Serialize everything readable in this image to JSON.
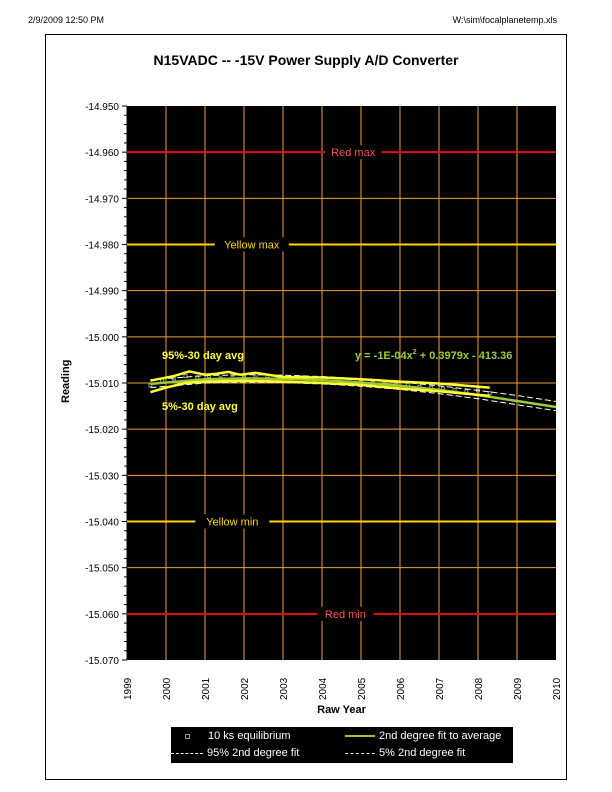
{
  "header": {
    "datetime": "2/9/2009 12:50 PM",
    "file_path": "W:\\sim\\focalplanetemp.xls"
  },
  "chart_data": {
    "type": "scatter",
    "title": "N15VADC -- -15V Power Supply A/D Converter",
    "xlabel": "Raw Year",
    "ylabel": "Reading",
    "xlim": [
      1999,
      2010
    ],
    "ylim": [
      -15.07,
      -14.95
    ],
    "x_ticks": [
      "1999",
      "2000",
      "2001",
      "2002",
      "2003",
      "2004",
      "2005",
      "2006",
      "2007",
      "2008",
      "2009",
      "2010"
    ],
    "y_ticks": [
      "-14.950",
      "-14.960",
      "-14.970",
      "-14.980",
      "-14.990",
      "-15.000",
      "-15.010",
      "-15.020",
      "-15.030",
      "-15.040",
      "-15.050",
      "-15.060",
      "-15.070"
    ],
    "grid": true,
    "reference_lines": [
      {
        "label": "Red max",
        "value": -14.96,
        "color": "#e01010",
        "label_x": 2004.8
      },
      {
        "label": "Yellow max",
        "value": -14.98,
        "color": "#ffd400",
        "label_x": 2002.2
      },
      {
        "label": "Yellow min",
        "value": -15.04,
        "color": "#ffd400",
        "label_x": 2001.7
      },
      {
        "label": "Red min",
        "value": -15.06,
        "color": "#e01010",
        "label_x": 2004.6
      }
    ],
    "annotations": [
      {
        "text": "95%-30 day avg",
        "color": "#ffff33"
      },
      {
        "text": "5%-30 day avg",
        "color": "#ffff33"
      },
      {
        "text": "y = -1E-04x",
        "sup": "2",
        "rest": " + 0.3979x - 413.36",
        "color": "#99cc33"
      }
    ],
    "series": [
      {
        "name": "10 ks equilibrium",
        "kind": "points",
        "color": "#999999",
        "x": [
          1999.6,
          1999.9,
          2000.2,
          2000.5,
          2000.8,
          2001.1,
          2001.4,
          2001.7,
          2002.0,
          2002.3,
          2002.6,
          2002.9,
          2003.2,
          2003.5,
          2003.8,
          2004.1,
          2004.4,
          2004.7,
          2005.0,
          2005.3,
          2005.6,
          2005.9,
          2006.2,
          2006.5,
          2006.8,
          2007.1,
          2007.4,
          2007.7,
          2008.0,
          2008.3
        ],
        "y": [
          -15.0105,
          -15.0095,
          -15.009,
          -15.0085,
          -15.0088,
          -15.0085,
          -15.009,
          -15.0082,
          -15.0088,
          -15.0088,
          -15.0085,
          -15.0092,
          -15.009,
          -15.0088,
          -15.0092,
          -15.009,
          -15.0093,
          -15.0095,
          -15.0098,
          -15.01,
          -15.0102,
          -15.0105,
          -15.0104,
          -15.0108,
          -15.011,
          -15.0112,
          -15.0115,
          -15.0118,
          -15.0116,
          -15.0122
        ]
      },
      {
        "name": "2nd degree fit to average",
        "kind": "line",
        "color": "#99cc33",
        "x": [
          1999.6,
          2001,
          2002,
          2003,
          2004,
          2005,
          2006,
          2007,
          2008,
          2009,
          2010
        ],
        "y": [
          -15.0102,
          -15.0092,
          -15.009,
          -15.0091,
          -15.0094,
          -15.0099,
          -15.0106,
          -15.0115,
          -15.0126,
          -15.0139,
          -15.0152
        ]
      },
      {
        "name": "95% 2nd degree fit",
        "kind": "dash",
        "color": "#ffffff",
        "x": [
          1999.6,
          2001,
          2002,
          2003,
          2004,
          2005,
          2006,
          2007,
          2008,
          2009,
          2010
        ],
        "y": [
          -15.0093,
          -15.0084,
          -15.0082,
          -15.0083,
          -15.0086,
          -15.0091,
          -15.0098,
          -15.0106,
          -15.0116,
          -15.0127,
          -15.014
        ]
      },
      {
        "name": "5% 2nd degree fit",
        "kind": "dash",
        "color": "#ffffff",
        "x": [
          1999.6,
          2001,
          2002,
          2003,
          2004,
          2005,
          2006,
          2007,
          2008,
          2009,
          2010
        ],
        "y": [
          -15.011,
          -15.01,
          -15.0098,
          -15.0099,
          -15.0102,
          -15.0107,
          -15.0114,
          -15.0123,
          -15.0134,
          -15.0147,
          -15.016
        ]
      },
      {
        "name": "95%-30 day avg",
        "kind": "line",
        "color": "#ffff33",
        "x": [
          1999.6,
          2000.2,
          2000.6,
          2001.0,
          2001.3,
          2001.6,
          2001.9,
          2002.3,
          2003,
          2004,
          2005,
          2006,
          2007,
          2008.3
        ],
        "y": [
          -15.0095,
          -15.0085,
          -15.0075,
          -15.0082,
          -15.008,
          -15.0076,
          -15.0082,
          -15.0078,
          -15.0087,
          -15.0088,
          -15.0092,
          -15.0097,
          -15.0101,
          -15.011
        ]
      },
      {
        "name": "5%-30 day avg",
        "kind": "line",
        "color": "#ffff33",
        "x": [
          1999.6,
          2000.0,
          2000.5,
          2001,
          2002,
          2003,
          2004,
          2005,
          2006,
          2007,
          2008.3
        ],
        "y": [
          -15.012,
          -15.011,
          -15.01,
          -15.0097,
          -15.0095,
          -15.0097,
          -15.01,
          -15.0104,
          -15.0112,
          -15.0118,
          -15.0128
        ]
      }
    ]
  },
  "legend": {
    "items": [
      "10 ks equilibrium",
      "2nd degree fit to average",
      "95% 2nd degree fit",
      "5% 2nd degree fit"
    ]
  }
}
